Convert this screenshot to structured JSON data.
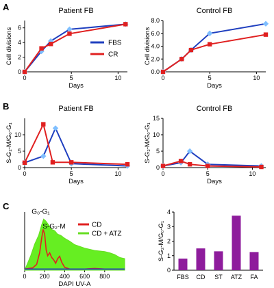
{
  "panels": [
    {
      "letter": "A"
    },
    {
      "letter": "B"
    },
    {
      "letter": "C"
    }
  ],
  "chart_data": [
    {
      "id": "A1",
      "type": "line",
      "title": "Patient FB",
      "xlabel": "Days",
      "ylabel": "Cell divisions",
      "xlim": [
        0,
        11
      ],
      "ylim": [
        0,
        7
      ],
      "xticks": [
        0,
        5,
        10
      ],
      "yticks": [
        0,
        2,
        4,
        6
      ],
      "series": [
        {
          "name": "FBS",
          "color": "#1f3fbf",
          "marker": "diamond",
          "marker_color": "#7fbfff",
          "x": [
            0,
            1.8,
            2.8,
            4.8,
            10.8
          ],
          "y": [
            0,
            2.8,
            4.2,
            5.8,
            6.5
          ]
        },
        {
          "name": "CR",
          "color": "#e02020",
          "marker": "square",
          "marker_color": "#e02020",
          "x": [
            0,
            1.8,
            2.8,
            4.8,
            10.8
          ],
          "y": [
            0,
            3.2,
            3.8,
            5.2,
            6.5
          ]
        }
      ],
      "legend": "right"
    },
    {
      "id": "A2",
      "type": "line",
      "title": "Control FB",
      "xlabel": "Days",
      "ylabel": "Cell divisions",
      "xlim": [
        0,
        11
      ],
      "ylim": [
        0,
        8
      ],
      "xticks": [
        0,
        5,
        10
      ],
      "yticks": [
        0.0,
        2.0,
        4.0,
        6.0,
        8.0
      ],
      "ytick_labels": [
        "0.0",
        "2.0",
        "4.0",
        "6.0",
        "8.0"
      ],
      "series": [
        {
          "color": "#1f3fbf",
          "marker": "diamond",
          "marker_color": "#7fbfff",
          "x": [
            0,
            2,
            3,
            5,
            11
          ],
          "y": [
            0,
            2.0,
            3.4,
            6.0,
            7.5
          ]
        },
        {
          "color": "#e02020",
          "marker": "square",
          "marker_color": "#e02020",
          "x": [
            0,
            2,
            3,
            5,
            11
          ],
          "y": [
            0,
            2.0,
            3.4,
            4.3,
            5.8
          ]
        }
      ]
    },
    {
      "id": "B1",
      "type": "line",
      "title": "Patient FB",
      "xlabel": "Days",
      "ylabel": "S-G₂-M/G₀-G₁",
      "xlim": [
        0,
        11
      ],
      "ylim": [
        0,
        15
      ],
      "xticks": [
        0,
        5,
        10
      ],
      "yticks": [
        0,
        5,
        10
      ],
      "series": [
        {
          "color": "#1f3fbf",
          "marker": "diamond",
          "marker_color": "#7fbfff",
          "x": [
            0,
            2,
            3.3,
            5,
            11
          ],
          "y": [
            1.5,
            3.5,
            12.0,
            1.2,
            0.5
          ]
        },
        {
          "color": "#e02020",
          "marker": "square",
          "marker_color": "#e02020",
          "x": [
            0,
            2,
            3,
            5,
            11
          ],
          "y": [
            1.5,
            13.2,
            1.6,
            1.6,
            1.0
          ]
        }
      ]
    },
    {
      "id": "B2",
      "type": "line",
      "title": "Control FB",
      "xlabel": "Days",
      "ylabel": "S-G₂-M/G₀-G₁",
      "xlim": [
        0,
        11.5
      ],
      "ylim": [
        0,
        15
      ],
      "xticks": [
        0,
        5,
        10
      ],
      "yticks": [
        0,
        5,
        10,
        15
      ],
      "series": [
        {
          "color": "#1f3fbf",
          "marker": "diamond",
          "marker_color": "#7fbfff",
          "x": [
            0,
            2,
            3,
            5,
            11
          ],
          "y": [
            0.5,
            1.5,
            5.0,
            1.0,
            0.5
          ]
        },
        {
          "color": "#e02020",
          "marker": "square",
          "marker_color": "#e02020",
          "x": [
            0,
            2,
            3,
            5,
            11
          ],
          "y": [
            0.5,
            2.0,
            1.0,
            0.5,
            0.2
          ]
        }
      ]
    },
    {
      "id": "C1",
      "type": "area",
      "xlabel": "DAPI UV-A",
      "xlim": [
        0,
        1000
      ],
      "ylim": [
        0,
        1
      ],
      "xticks": [
        0,
        200,
        400,
        600,
        800
      ],
      "annotations": [
        {
          "text": "G₀-G₁",
          "x": 70,
          "y": 0.97
        },
        {
          "text": "S-G₂-M",
          "x": 180,
          "y": 0.72
        }
      ],
      "series": [
        {
          "name": "CD + ATZ",
          "color": "#66dd22",
          "fill": "#66ee22",
          "x": [
            0,
            60,
            100,
            140,
            170,
            190,
            210,
            240,
            270,
            300,
            330,
            360,
            400,
            450,
            500,
            600,
            700,
            800,
            850,
            900,
            950,
            1000
          ],
          "y": [
            0.0,
            0.25,
            0.45,
            0.6,
            0.78,
            0.88,
            0.85,
            0.78,
            0.7,
            0.68,
            0.62,
            0.6,
            0.55,
            0.5,
            0.44,
            0.38,
            0.34,
            0.32,
            0.3,
            0.27,
            0.22,
            0.2
          ]
        },
        {
          "name": "CD",
          "color": "#e02020",
          "x": [
            0,
            80,
            120,
            150,
            170,
            185,
            200,
            215,
            230,
            250,
            270,
            290,
            310,
            330,
            350,
            370,
            400,
            450,
            500,
            600,
            700,
            800,
            900,
            1000
          ],
          "y": [
            0.02,
            0.04,
            0.1,
            0.3,
            0.55,
            0.7,
            0.62,
            0.35,
            0.25,
            0.3,
            0.22,
            0.18,
            0.12,
            0.2,
            0.24,
            0.14,
            0.05,
            0.02,
            0.02,
            0.02,
            0.03,
            0.02,
            0.02,
            0.02
          ]
        },
        {
          "color": "#1f3fbf",
          "x": [
            0,
            200,
            400,
            600,
            800,
            1000
          ],
          "y": [
            0.02,
            0.02,
            0.02,
            0.02,
            0.02,
            0.02
          ]
        }
      ],
      "legend": "top-right"
    },
    {
      "id": "C2",
      "type": "bar",
      "ylabel": "S-G₂-M/G₀-G₁",
      "categories": [
        "FBS",
        "CD",
        "ST",
        "ATZ",
        "FA"
      ],
      "values": [
        0.8,
        1.5,
        1.3,
        3.75,
        1.25
      ],
      "ylim": [
        0,
        4
      ],
      "yticks": [
        0,
        1,
        2,
        3,
        4
      ],
      "color": "#8e1c9c"
    }
  ]
}
